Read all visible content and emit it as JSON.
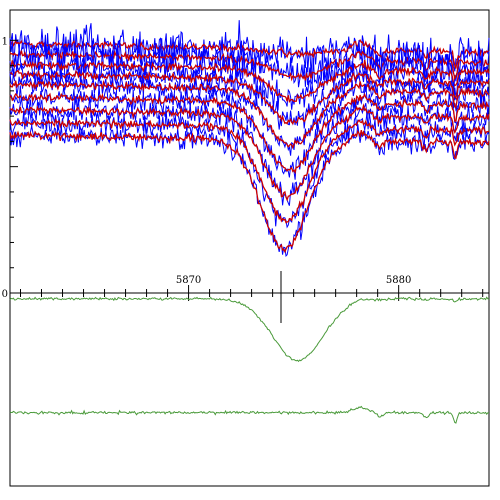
{
  "chart_data": [
    {
      "type": "line",
      "panel": "top",
      "xlim": [
        5861.5,
        5884.3
      ],
      "ylim": [
        0,
        1.12
      ],
      "x_ticks_major": [
        5870,
        5880
      ],
      "x_tick_labels": [
        "5870",
        "5880"
      ],
      "y_ticks_major": [
        0,
        0.5,
        1
      ],
      "y_tick_labels": [
        "0",
        "",
        "1"
      ],
      "colors": {
        "observed": "#0000ff",
        "model": "#cc0000"
      },
      "marker_x": 5874.4,
      "series_offsets": [
        0.0,
        -0.04,
        -0.08,
        -0.12,
        -0.16,
        -0.21,
        -0.26,
        -0.31,
        -0.36
      ],
      "feature": {
        "center": 5875.2,
        "width": 1.6,
        "depths": [
          0.02,
          0.07,
          0.12,
          0.17,
          0.22,
          0.27,
          0.32,
          0.37,
          0.43
        ]
      },
      "noise_levels": {
        "observed": 0.035,
        "model": 0.012
      }
    },
    {
      "type": "line",
      "panel": "bottom",
      "xlim": [
        5861.5,
        5884.3
      ],
      "colors": {
        "line": "#4a9a3a"
      },
      "series": [
        {
          "level": 0.97,
          "feature_center": 5875.2,
          "feature_depth": 0.32,
          "feature_width": 1.7
        },
        {
          "level": 0.38,
          "feature_center": 5875.2,
          "feature_depth": 0.0,
          "feature_width": 1.7
        }
      ]
    }
  ]
}
